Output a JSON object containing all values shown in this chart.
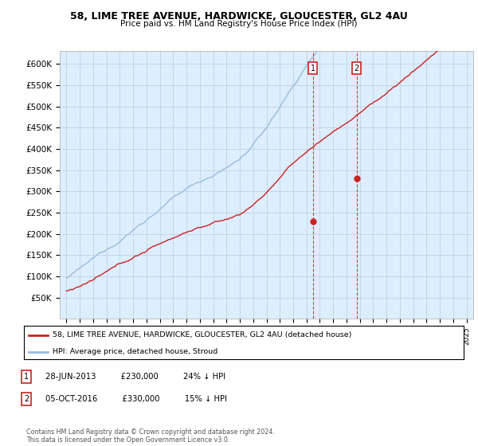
{
  "title_line1": "58, LIME TREE AVENUE, HARDWICKE, GLOUCESTER, GL2 4AU",
  "title_line2": "Price paid vs. HM Land Registry's House Price Index (HPI)",
  "ylabel_ticks": [
    "£600K",
    "£550K",
    "£500K",
    "£450K",
    "£400K",
    "£350K",
    "£300K",
    "£250K",
    "£200K",
    "£150K",
    "£100K",
    "£50K"
  ],
  "ytick_values": [
    600000,
    550000,
    500000,
    450000,
    400000,
    350000,
    300000,
    250000,
    200000,
    150000,
    100000,
    50000
  ],
  "ylim": [
    0,
    630000
  ],
  "xlim_start": 1994.5,
  "xlim_end": 2025.5,
  "hpi_color": "#99bbdd",
  "price_color": "#cc2222",
  "sale1_date": 2013.49,
  "sale1_price": 230000,
  "sale2_date": 2016.75,
  "sale2_price": 330000,
  "legend_label1": "58, LIME TREE AVENUE, HARDWICKE, GLOUCESTER, GL2 4AU (detached house)",
  "legend_label2": "HPI: Average price, detached house, Stroud",
  "annotation1_text": "28-JUN-2013          £230,000          24% ↓ HPI",
  "annotation2_text": "05-OCT-2016          £330,000          15% ↓ HPI",
  "footer_text": "Contains HM Land Registry data © Crown copyright and database right 2024.\nThis data is licensed under the Open Government Licence v3.0.",
  "plot_bg_color": "#ddeeff",
  "grid_color": "#bbccdd"
}
